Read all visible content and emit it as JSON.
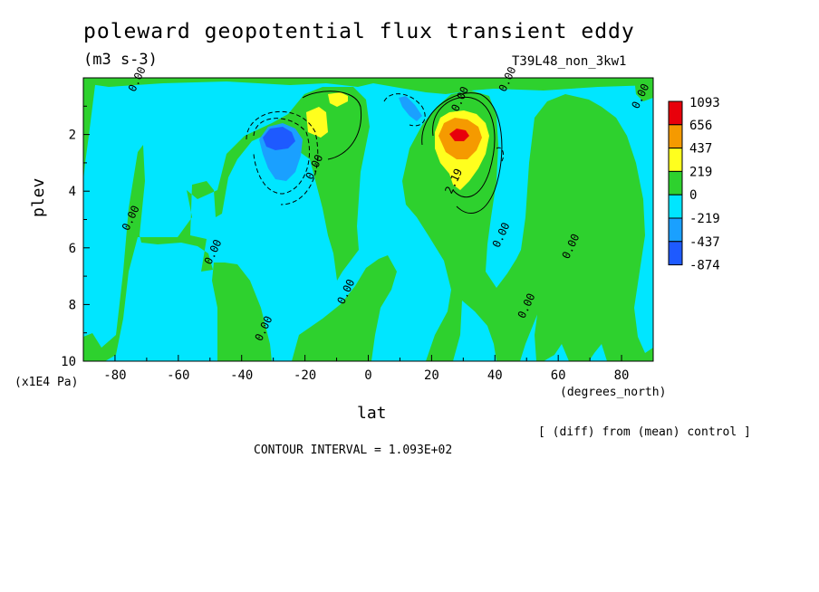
{
  "header": {
    "title": "poleward geopotential flux transient eddy",
    "units": "(m3 s-3)",
    "run": "T39L48_non_3kw1"
  },
  "chart_data": {
    "type": "heatmap",
    "xlabel": "lat",
    "ylabel": "plev",
    "x_unit": "(degrees_north)",
    "y_unit": "(x1E4 Pa)",
    "xlim": [
      -90,
      90
    ],
    "ylim": [
      10,
      0
    ],
    "x_ticks": [
      -80,
      -60,
      -40,
      -20,
      0,
      20,
      40,
      60,
      80
    ],
    "x_tick_labels": [
      "-80",
      "-60",
      "-40",
      "-20",
      "0",
      "20",
      "40",
      "60",
      "80"
    ],
    "y_ticks": [
      2,
      4,
      6,
      8,
      10
    ],
    "y_tick_labels": [
      "2",
      "4",
      "6",
      "8",
      "10"
    ],
    "legend": {
      "placement": "right",
      "levels": [
        {
          "label": "1093",
          "color": "#e8000b"
        },
        {
          "label": "656",
          "color": "#f59a00"
        },
        {
          "label": "437",
          "color": "#ffff1e"
        },
        {
          "label": "219",
          "color": "#2ed12e"
        },
        {
          "label": "0",
          "color": "#00e6ff"
        },
        {
          "label": "-219",
          "color": "#1aa0ff"
        },
        {
          "label": "-437",
          "color": "#1e5aff"
        },
        {
          "label": "-874",
          "color": null
        }
      ]
    },
    "contour_labels": [
      {
        "text": "0.00",
        "lat": -72,
        "p": 0.1
      },
      {
        "text": "0.00",
        "lat": 45,
        "p": 0.1
      },
      {
        "text": "0.00",
        "lat": 87,
        "p": 0.7
      },
      {
        "text": "0.00",
        "lat": 30,
        "p": 0.8
      },
      {
        "text": "0.00",
        "lat": -16,
        "p": 3.2
      },
      {
        "text": "2.19",
        "lat": 28,
        "p": 3.7
      },
      {
        "text": "0.00",
        "lat": -74,
        "p": 5.0
      },
      {
        "text": "0.00",
        "lat": -48,
        "p": 6.2
      },
      {
        "text": "0.00",
        "lat": 43,
        "p": 5.6
      },
      {
        "text": "0.00",
        "lat": 65,
        "p": 6.0
      },
      {
        "text": "0.00",
        "lat": -6,
        "p": 7.6
      },
      {
        "text": "0.00",
        "lat": 51,
        "p": 8.1
      },
      {
        "text": "0.00",
        "lat": -32,
        "p": 8.9
      }
    ],
    "notes": {
      "diff": "[ (diff) from (mean) control ]",
      "contour_interval": "CONTOUR INTERVAL = 1.093E+02"
    }
  }
}
